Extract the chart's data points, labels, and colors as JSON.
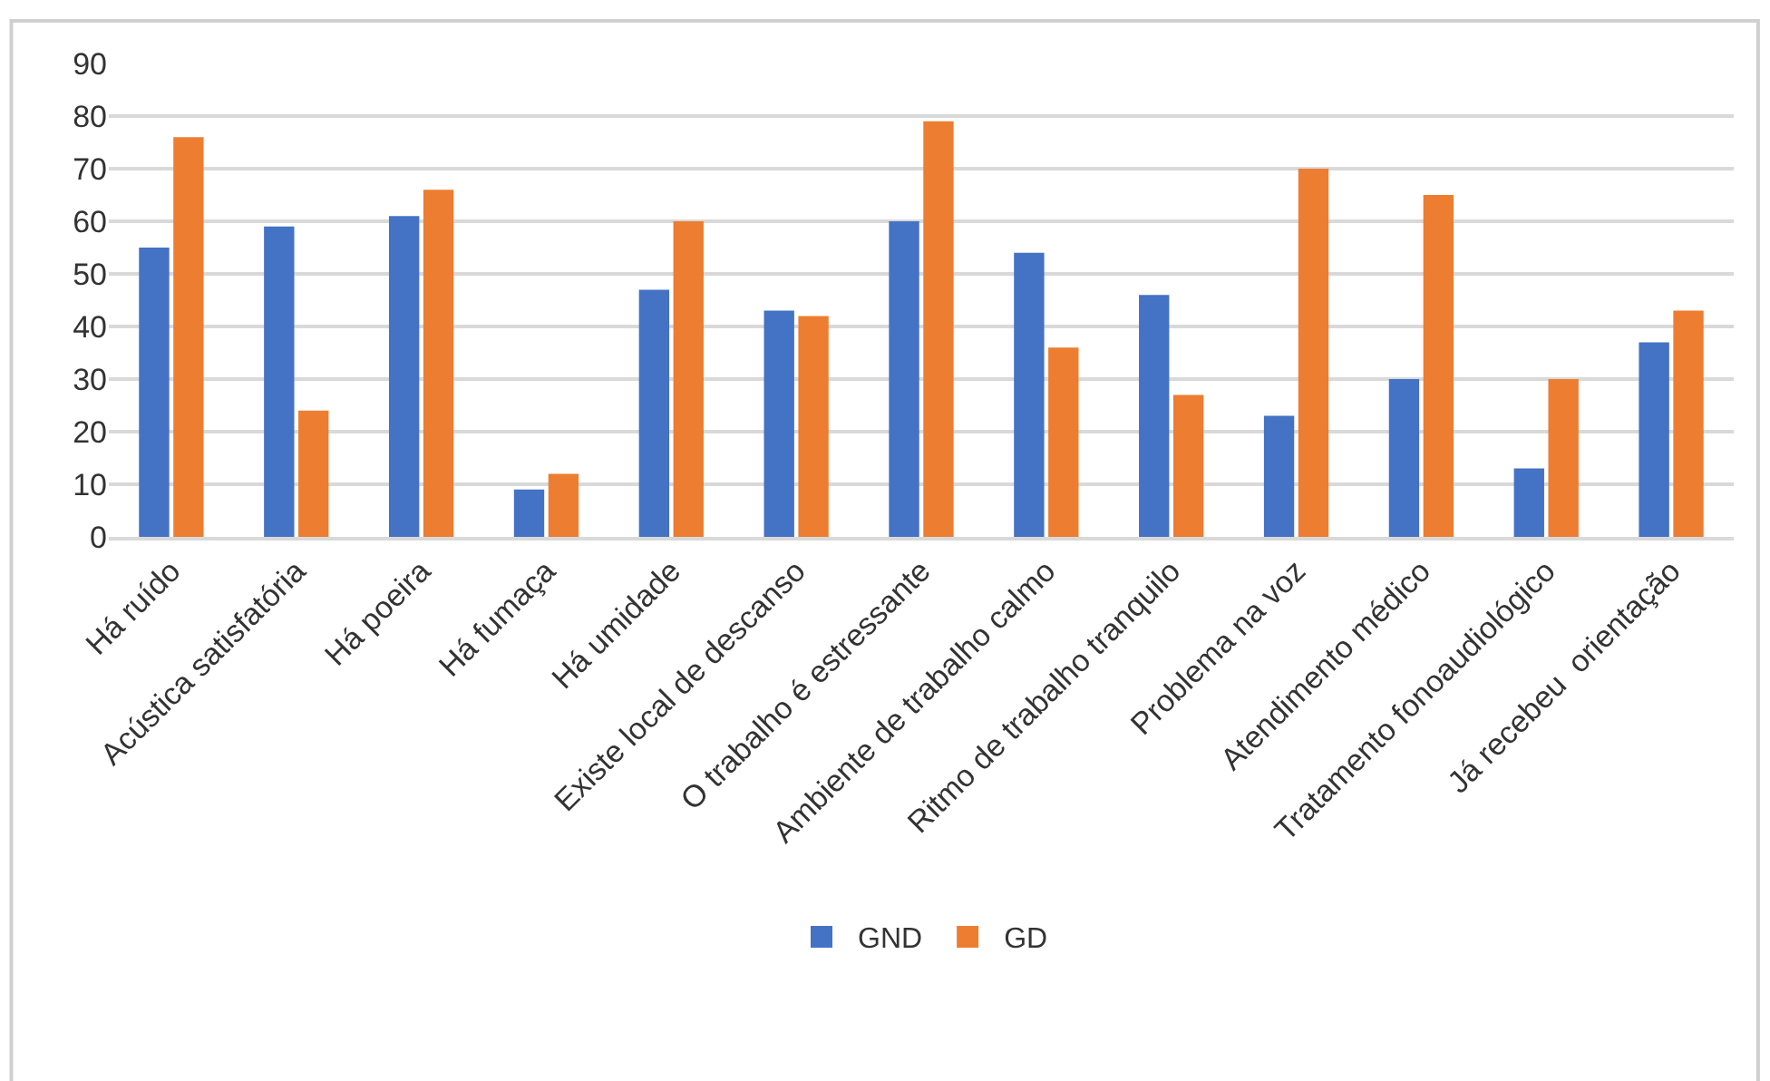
{
  "chart_data": {
    "type": "bar",
    "categories": [
      "Há ruído",
      "Acústica satisfatória",
      "Há poeira",
      "Há fumaça",
      "Há umidade",
      "Existe local de descanso",
      "O trabalho é estressante",
      "Ambiente de trabalho calmo",
      "Ritmo de trabalho tranquilo",
      "Problema na voz",
      "Atendimento médico",
      "Tratamento fonoaudiológico",
      "Já recebeu  orientação"
    ],
    "series": [
      {
        "name": "GND",
        "color": "#4472c4",
        "values": [
          55,
          59,
          61,
          9,
          47,
          43,
          60,
          54,
          46,
          23,
          30,
          13,
          37
        ]
      },
      {
        "name": "GD",
        "color": "#ed7d31",
        "values": [
          76,
          24,
          66,
          12,
          60,
          42,
          79,
          36,
          27,
          70,
          65,
          30,
          43
        ]
      }
    ],
    "ylim": [
      0,
      90
    ],
    "yticks": [
      0,
      10,
      20,
      30,
      40,
      50,
      60,
      70,
      80,
      90
    ],
    "grid": "y",
    "legend": "bottom"
  }
}
